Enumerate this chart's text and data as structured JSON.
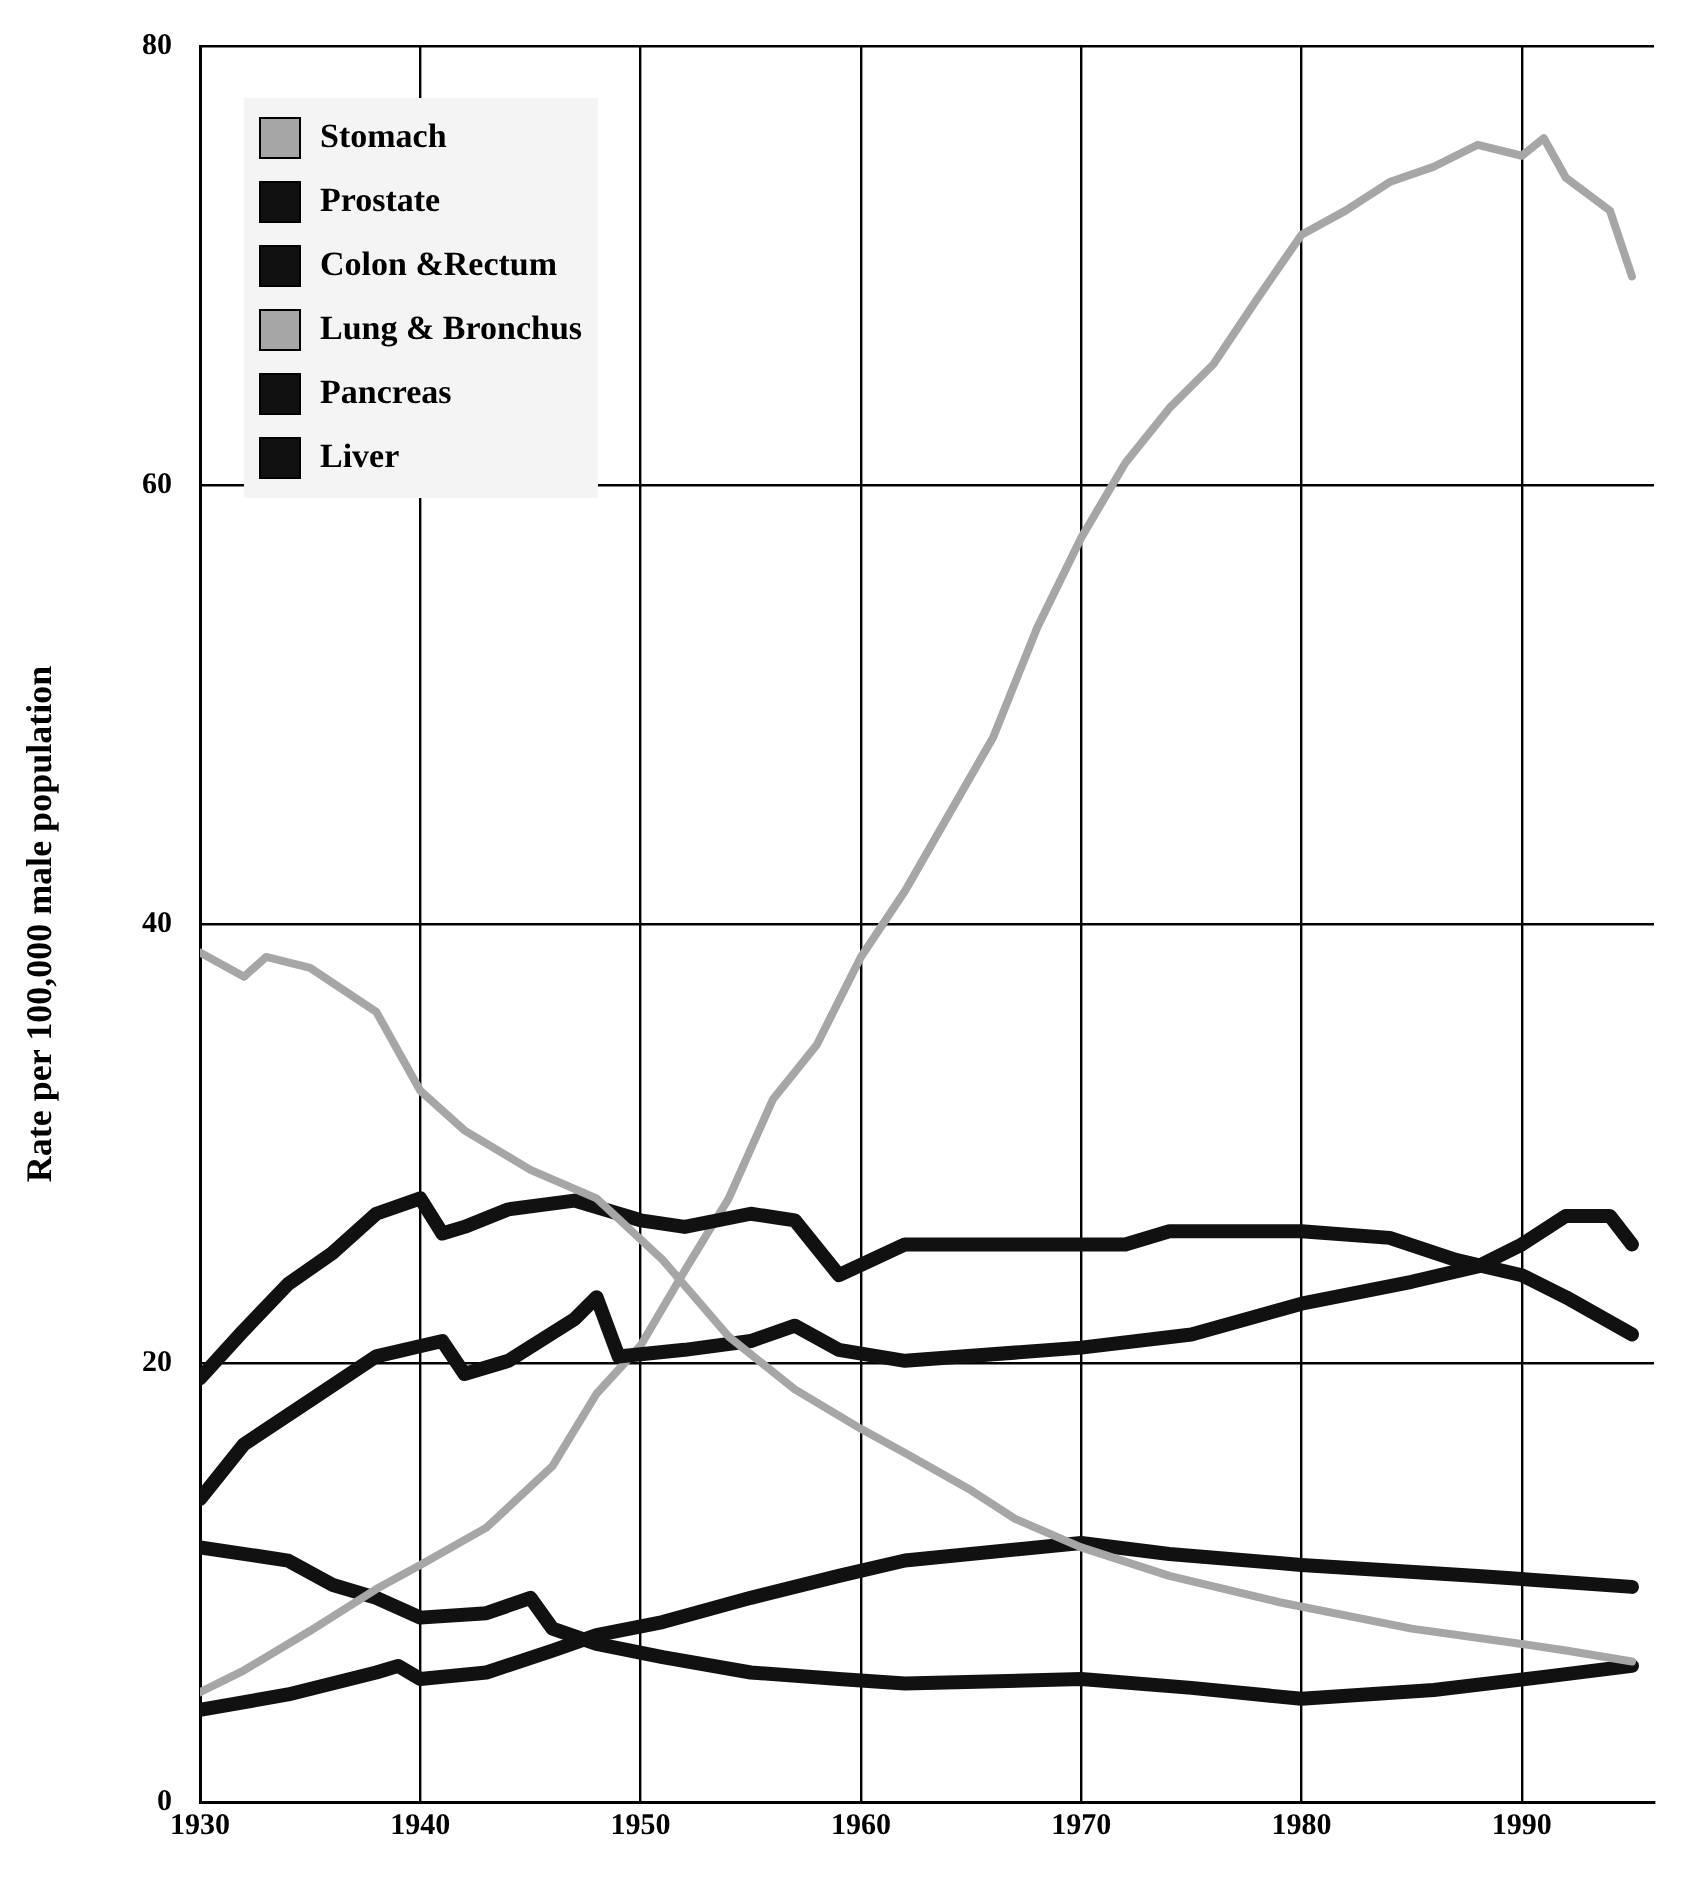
{
  "chart_data": {
    "type": "line",
    "ylabel": "Rate per 100,000 male population",
    "xlim": [
      1930,
      1996
    ],
    "xticks": [
      1930,
      1940,
      1950,
      1960,
      1970,
      1980,
      1990
    ],
    "ylim": [
      0,
      80
    ],
    "yticks": [
      0,
      20,
      40,
      60,
      80
    ],
    "grid": true,
    "legend": "top left",
    "marker": "none",
    "line_style": "solid",
    "series": [
      {
        "name": "Stomach",
        "color": "#a6a6a6",
        "x": [
          1930,
          1932,
          1933,
          1935,
          1938,
          1940,
          1942,
          1945,
          1948,
          1951,
          1954,
          1957,
          1960,
          1962,
          1965,
          1967,
          1970,
          1974,
          1979,
          1985,
          1990,
          1992,
          1995
        ],
        "values": [
          38.7,
          37.6,
          38.5,
          38.0,
          36.0,
          32.4,
          30.6,
          28.8,
          27.5,
          24.7,
          21.2,
          18.8,
          17.0,
          15.9,
          14.2,
          12.9,
          11.6,
          10.3,
          9.1,
          7.9,
          7.2,
          6.9,
          6.4
        ]
      },
      {
        "name": "Prostate",
        "color": "#111111",
        "x": [
          1930,
          1932,
          1935,
          1938,
          1941,
          1942,
          1944,
          1947,
          1948,
          1949,
          1952,
          1955,
          1957,
          1959,
          1962,
          1970,
          1975,
          1980,
          1985,
          1988,
          1990,
          1992,
          1994,
          1995
        ],
        "values": [
          13.8,
          16.3,
          18.3,
          20.3,
          21.0,
          19.5,
          20.1,
          22.0,
          23.0,
          20.3,
          20.6,
          21.0,
          21.7,
          20.6,
          20.1,
          20.7,
          21.3,
          22.7,
          23.7,
          24.4,
          25.4,
          26.7,
          26.7,
          25.4
        ]
      },
      {
        "name": "Colon &Rectum",
        "color": "#111111",
        "x": [
          1930,
          1932,
          1934,
          1936,
          1938,
          1940,
          1941,
          1942,
          1944,
          1947,
          1950,
          1952,
          1955,
          1957,
          1959,
          1962,
          1967,
          1972,
          1974,
          1980,
          1984,
          1987,
          1990,
          1992,
          1995
        ],
        "values": [
          19.3,
          21.5,
          23.6,
          25.0,
          26.8,
          27.5,
          25.9,
          26.2,
          27.0,
          27.4,
          26.5,
          26.2,
          26.8,
          26.5,
          24.0,
          25.4,
          25.4,
          25.4,
          26.0,
          26.0,
          25.7,
          24.7,
          24.0,
          23.0,
          21.3
        ]
      },
      {
        "name": "Lung & Bronchus",
        "color": "#a6a6a6",
        "x": [
          1930,
          1932,
          1935,
          1938,
          1940,
          1943,
          1946,
          1948,
          1950,
          1952,
          1954,
          1956,
          1958,
          1960,
          1962,
          1964,
          1966,
          1968,
          1970,
          1972,
          1974,
          1976,
          1978,
          1980,
          1982,
          1984,
          1986,
          1988,
          1990,
          1991,
          1992,
          1994,
          1995
        ],
        "values": [
          5.0,
          6.0,
          7.8,
          9.7,
          10.8,
          12.5,
          15.3,
          18.6,
          20.8,
          24.2,
          27.5,
          32.0,
          34.5,
          38.5,
          41.5,
          45.0,
          48.5,
          53.5,
          57.6,
          61.0,
          63.5,
          65.5,
          68.5,
          71.4,
          72.5,
          73.8,
          74.5,
          75.5,
          75.0,
          75.8,
          74.0,
          72.5,
          69.5
        ]
      },
      {
        "name": "Pancreas",
        "color": "#111111",
        "x": [
          1930,
          1934,
          1938,
          1939,
          1940,
          1943,
          1946,
          1948,
          1951,
          1955,
          1959,
          1962,
          1970,
          1974,
          1980,
          1988,
          1995
        ],
        "values": [
          4.2,
          4.9,
          5.9,
          6.2,
          5.6,
          5.9,
          6.9,
          7.6,
          8.2,
          9.3,
          10.3,
          11.0,
          11.8,
          11.3,
          10.8,
          10.3,
          9.8
        ]
      },
      {
        "name": "Liver",
        "color": "#111111",
        "x": [
          1930,
          1934,
          1936,
          1938,
          1940,
          1943,
          1945,
          1946,
          1948,
          1951,
          1955,
          1959,
          1962,
          1970,
          1975,
          1980,
          1986,
          1991,
          1995
        ],
        "values": [
          11.6,
          11.0,
          9.9,
          9.3,
          8.4,
          8.6,
          9.3,
          7.9,
          7.2,
          6.6,
          5.9,
          5.6,
          5.4,
          5.6,
          5.2,
          4.7,
          5.1,
          5.7,
          6.2
        ]
      }
    ]
  }
}
